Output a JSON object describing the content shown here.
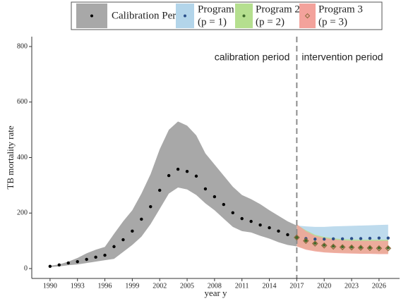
{
  "chart_data": {
    "type": "band-scatter",
    "x_label": "year y",
    "y_label": "TB mortality rate",
    "xlim": [
      1988,
      2028.25
    ],
    "ylim": [
      -35.6,
      835.6
    ],
    "xticks": [
      1990,
      1993,
      1996,
      1999,
      2002,
      2005,
      2008,
      2011,
      2014,
      2017,
      2020,
      2023,
      2026
    ],
    "yticks": [
      0,
      200,
      400,
      600,
      800
    ],
    "vline": 2017,
    "annotations": [
      "calibration period",
      "intervention period"
    ],
    "series": [
      {
        "name": "Calibration Period",
        "color": "#a8a8a8",
        "marker_color": "#000000",
        "marker": "dot",
        "x": [
          1990,
          1991,
          1992,
          1993,
          1994,
          1995,
          1996,
          1997,
          1998,
          1999,
          2000,
          2001,
          2002,
          2003,
          2004,
          2005,
          2006,
          2007,
          2008,
          2009,
          2010,
          2011,
          2012,
          2013,
          2014,
          2015,
          2016,
          2017
        ],
        "values": [
          8,
          13,
          20,
          25,
          33,
          41,
          48,
          79,
          104,
          135,
          178,
          223,
          282,
          335,
          358,
          350,
          333,
          287,
          259,
          231,
          201,
          180,
          170,
          157,
          147,
          135,
          122,
          112
        ],
        "upper": [
          10,
          15,
          25,
          38,
          55,
          68,
          78,
          125,
          170,
          210,
          270,
          340,
          430,
          500,
          530,
          515,
          480,
          415,
          375,
          335,
          295,
          265,
          250,
          232,
          210,
          190,
          170,
          155
        ],
        "lower": [
          5,
          8,
          12,
          15,
          20,
          25,
          30,
          35,
          60,
          85,
          115,
          160,
          215,
          270,
          292,
          285,
          265,
          235,
          210,
          180,
          150,
          135,
          130,
          118,
          108,
          95,
          85,
          80
        ]
      },
      {
        "name": "Program 1",
        "subtitle": "(p = 1)",
        "color": "#b3d5ea",
        "marker_color": "#2b4f8a",
        "marker": "dot",
        "x": [
          2017,
          2018,
          2019,
          2020,
          2021,
          2022,
          2023,
          2024,
          2025,
          2026,
          2027
        ],
        "values": [
          112,
          108,
          106,
          106,
          107,
          107,
          108,
          108,
          109,
          110,
          110
        ],
        "upper": [
          155,
          152,
          150,
          150,
          152,
          153,
          154,
          155,
          156,
          157,
          158
        ],
        "lower": [
          80,
          85,
          88,
          90,
          92,
          93,
          94,
          95,
          96,
          97,
          98
        ]
      },
      {
        "name": "Program 2",
        "subtitle": "(p = 2)",
        "color": "#b5df8f",
        "marker_color": "#3d6b2a",
        "marker": "star",
        "x": [
          2017,
          2018,
          2019,
          2020,
          2021,
          2022,
          2023,
          2024,
          2025,
          2026,
          2027
        ],
        "values": [
          112,
          101,
          92,
          85,
          81,
          79,
          78,
          77,
          76,
          75,
          75
        ],
        "upper": [
          158,
          138,
          122,
          114,
          109,
          106,
          105,
          104,
          104,
          104,
          104
        ],
        "lower": [
          80,
          70,
          64,
          60,
          58,
          57,
          56,
          55,
          55,
          54,
          54
        ]
      },
      {
        "name": "Program 3",
        "subtitle": "(p = 3)",
        "color": "#f3a29b",
        "marker_color": "#8a6a3c",
        "marker": "diamond",
        "x": [
          2017,
          2018,
          2019,
          2020,
          2021,
          2022,
          2023,
          2024,
          2025,
          2026,
          2027
        ],
        "values": [
          112,
          100,
          90,
          83,
          79,
          77,
          76,
          75,
          74,
          73,
          73
        ],
        "upper": [
          160,
          135,
          118,
          110,
          105,
          102,
          100,
          100,
          100,
          100,
          100
        ],
        "lower": [
          80,
          68,
          62,
          58,
          56,
          55,
          54,
          53,
          53,
          52,
          52
        ]
      }
    ]
  }
}
